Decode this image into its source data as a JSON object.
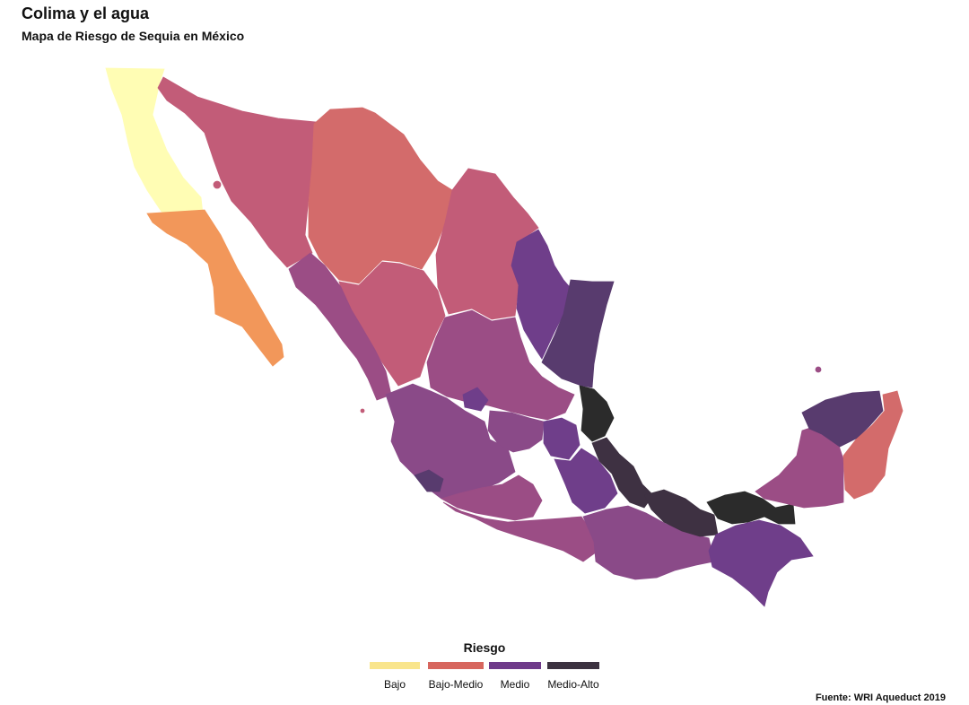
{
  "title": "Colima y el agua",
  "subtitle": "Mapa de Riesgo de Sequia en México",
  "legend": {
    "title": "Riesgo",
    "items": [
      {
        "label": "Bajo",
        "color": "#f9e58c"
      },
      {
        "label": "Bajo-Medio",
        "color": "#d7665e"
      },
      {
        "label": "Medio",
        "color": "#6f3a8a"
      },
      {
        "label": "Medio-Alto",
        "color": "#3c3240"
      }
    ]
  },
  "source": "Fuente: WRI Aqueduct 2019",
  "colors": {
    "baja_norte": "#fffdb4",
    "baja_sur": "#f2975a",
    "bajo_medio_a": "#d36b6b",
    "bajo_medio_b": "#c25c78",
    "medio_a": "#9b4d85",
    "medio_b": "#8a4a88",
    "medio_c": "#6f3e8a",
    "medio_alto_a": "#583b6e",
    "medio_alto_b": "#3e3142",
    "alto": "#2b2b2b"
  }
}
